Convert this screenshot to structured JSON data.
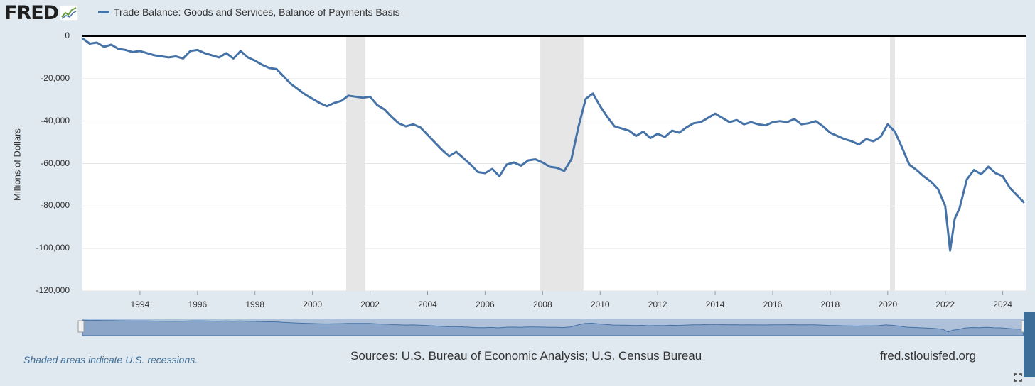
{
  "brand": {
    "name": "FRED"
  },
  "legend": {
    "series_name": "Trade Balance: Goods and Services, Balance of Payments Basis",
    "color": "#4572a7"
  },
  "footer": {
    "note": "Shaded areas indicate U.S. recessions.",
    "sources": "Sources: U.S. Bureau of Economic Analysis; U.S. Census Bureau",
    "site": "fred.stlouisfed.org"
  },
  "chart_data": {
    "type": "line",
    "title": "",
    "xlabel": "",
    "ylabel": "Millions of Dollars",
    "xlim": [
      1992.0,
      2024.8
    ],
    "ylim": [
      -120000,
      0
    ],
    "y_ticks": [
      "0",
      "-20,000",
      "-40,000",
      "-60,000",
      "-80,000",
      "-100,000",
      "-120,000"
    ],
    "y_tick_values": [
      0,
      -20000,
      -40000,
      -60000,
      -80000,
      -100000,
      -120000
    ],
    "x_ticks": [
      "1994",
      "1996",
      "1998",
      "2000",
      "2002",
      "2004",
      "2006",
      "2008",
      "2010",
      "2012",
      "2014",
      "2016",
      "2018",
      "2020",
      "2022",
      "2024"
    ],
    "x_tick_values": [
      1994,
      1996,
      1998,
      2000,
      2002,
      2004,
      2006,
      2008,
      2010,
      2012,
      2014,
      2016,
      2018,
      2020,
      2022,
      2024
    ],
    "grid": "horizontal",
    "recessions": [
      [
        2001.17,
        2001.83
      ],
      [
        2007.92,
        2009.42
      ],
      [
        2020.08,
        2020.25
      ]
    ],
    "series": [
      {
        "name": "Trade Balance: Goods and Services, Balance of Payments Basis",
        "color": "#4572a7",
        "x": [
          1992.0,
          1992.25,
          1992.5,
          1992.75,
          1993.0,
          1993.25,
          1993.5,
          1993.75,
          1994.0,
          1994.25,
          1994.5,
          1994.75,
          1995.0,
          1995.25,
          1995.5,
          1995.75,
          1996.0,
          1996.25,
          1996.5,
          1996.75,
          1997.0,
          1997.25,
          1997.5,
          1997.75,
          1998.0,
          1998.25,
          1998.5,
          1998.75,
          1999.0,
          1999.25,
          1999.5,
          1999.75,
          2000.0,
          2000.25,
          2000.5,
          2000.75,
          2001.0,
          2001.25,
          2001.5,
          2001.75,
          2002.0,
          2002.25,
          2002.5,
          2002.75,
          2003.0,
          2003.25,
          2003.5,
          2003.75,
          2004.0,
          2004.25,
          2004.5,
          2004.75,
          2005.0,
          2005.25,
          2005.5,
          2005.75,
          2006.0,
          2006.25,
          2006.5,
          2006.75,
          2007.0,
          2007.25,
          2007.5,
          2007.75,
          2008.0,
          2008.25,
          2008.5,
          2008.75,
          2009.0,
          2009.25,
          2009.5,
          2009.75,
          2010.0,
          2010.25,
          2010.5,
          2010.75,
          2011.0,
          2011.25,
          2011.5,
          2011.75,
          2012.0,
          2012.25,
          2012.5,
          2012.75,
          2013.0,
          2013.25,
          2013.5,
          2013.75,
          2014.0,
          2014.25,
          2014.5,
          2014.75,
          2015.0,
          2015.25,
          2015.5,
          2015.75,
          2016.0,
          2016.25,
          2016.5,
          2016.75,
          2017.0,
          2017.25,
          2017.5,
          2017.75,
          2018.0,
          2018.25,
          2018.5,
          2018.75,
          2019.0,
          2019.25,
          2019.5,
          2019.75,
          2020.0,
          2020.25,
          2020.5,
          2020.75,
          2021.0,
          2021.25,
          2021.5,
          2021.75,
          2022.0,
          2022.17,
          2022.33,
          2022.5,
          2022.75,
          2023.0,
          2023.25,
          2023.5,
          2023.75,
          2024.0,
          2024.25,
          2024.5,
          2024.75
        ],
        "values": [
          -1000,
          -3500,
          -3000,
          -5000,
          -4000,
          -6000,
          -6500,
          -7500,
          -7000,
          -8000,
          -9000,
          -9500,
          -10000,
          -9500,
          -10500,
          -7000,
          -6500,
          -8000,
          -9000,
          -10000,
          -8000,
          -10500,
          -7000,
          -10000,
          -11500,
          -13500,
          -15000,
          -15500,
          -19000,
          -22500,
          -25000,
          -27500,
          -29500,
          -31500,
          -33000,
          -31500,
          -30500,
          -28000,
          -28500,
          -29000,
          -28500,
          -32500,
          -34500,
          -38000,
          -41000,
          -42500,
          -41500,
          -43000,
          -46500,
          -50000,
          -53500,
          -56500,
          -54500,
          -57500,
          -60500,
          -64000,
          -64500,
          -62500,
          -66000,
          -60500,
          -59500,
          -61000,
          -58500,
          -58000,
          -59500,
          -61500,
          -62000,
          -63500,
          -58000,
          -42500,
          -29500,
          -27000,
          -33000,
          -38000,
          -42500,
          -43500,
          -44500,
          -47000,
          -45000,
          -48000,
          -46000,
          -47500,
          -44500,
          -45500,
          -43000,
          -41000,
          -40500,
          -38500,
          -36500,
          -38500,
          -40500,
          -39500,
          -41500,
          -40500,
          -41500,
          -42000,
          -40500,
          -40000,
          -40500,
          -39000,
          -41500,
          -41000,
          -40000,
          -42500,
          -45500,
          -47000,
          -48500,
          -49500,
          -51000,
          -48500,
          -49500,
          -47500,
          -41500,
          -45000,
          -52500,
          -60500,
          -63000,
          -66000,
          -68500,
          -72000,
          -80000,
          -101000,
          -86000,
          -81000,
          -67500,
          -63000,
          -65000,
          -61500,
          -64500,
          -66000,
          -71500,
          -75000,
          -78500
        ]
      }
    ]
  }
}
